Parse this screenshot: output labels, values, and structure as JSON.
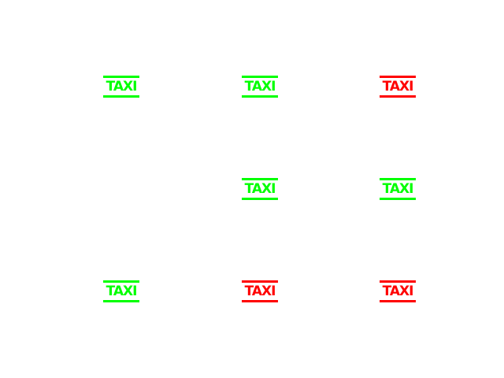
{
  "colors": {
    "green": "#00ff00",
    "red": "#ff0000",
    "background": "#ffffff"
  },
  "grid": {
    "rows": [
      [
        {
          "label": "TAXI",
          "status": "green"
        },
        {
          "label": "TAXI",
          "status": "green"
        },
        {
          "label": "TAXI",
          "status": "red"
        }
      ],
      [
        {
          "label": "",
          "status": "empty"
        },
        {
          "label": "TAXI",
          "status": "green"
        },
        {
          "label": "TAXI",
          "status": "green"
        }
      ],
      [
        {
          "label": "TAXI",
          "status": "green"
        },
        {
          "label": "TAXI",
          "status": "red"
        },
        {
          "label": "TAXI",
          "status": "red"
        }
      ]
    ]
  }
}
